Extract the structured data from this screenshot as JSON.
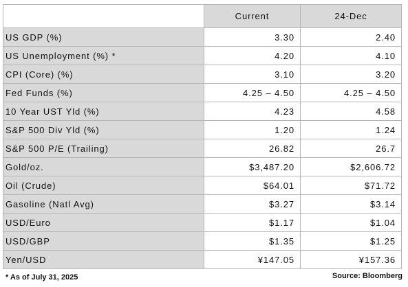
{
  "table": {
    "headers": [
      "",
      "Current",
      "24-Dec"
    ],
    "rows": [
      {
        "label": "US GDP (%)",
        "current": "3.30",
        "prev": "2.40"
      },
      {
        "label": "US Unemployment (%) *",
        "current": "4.20",
        "prev": "4.10"
      },
      {
        "label": "CPI (Core) (%)",
        "current": "3.10",
        "prev": "3.20"
      },
      {
        "label": "Fed Funds (%)",
        "current": "4.25 – 4.50",
        "prev": "4.25 – 4.50"
      },
      {
        "label": "10 Year UST Yld (%)",
        "current": "4.23",
        "prev": "4.58"
      },
      {
        "label": "S&P 500 Div Yld (%)",
        "current": "1.20",
        "prev": "1.24"
      },
      {
        "label": "S&P 500 P/E (Trailing)",
        "current": "26.82",
        "prev": "26.7"
      },
      {
        "label": "Gold/oz.",
        "current": "$3,487.20",
        "prev": "$2,606.72"
      },
      {
        "label": "Oil (Crude)",
        "current": "$64.01",
        "prev": "$71.72"
      },
      {
        "label": "Gasoline (Natl Avg)",
        "current": "$3.27",
        "prev": "$3.14"
      },
      {
        "label": "USD/Euro",
        "current": "$1.17",
        "prev": "$1.04"
      },
      {
        "label": "USD/GBP",
        "current": "$1.35",
        "prev": "$1.25"
      },
      {
        "label": "Yen/USD",
        "current": "¥147.05",
        "prev": "¥157.36"
      }
    ]
  },
  "footnote": "* As of July 31, 2025",
  "source": "Source: Bloomberg",
  "colors": {
    "label_fill": "#d9d9d9",
    "header_fill": "#d9d9d9",
    "border": "#b5b5b5"
  }
}
